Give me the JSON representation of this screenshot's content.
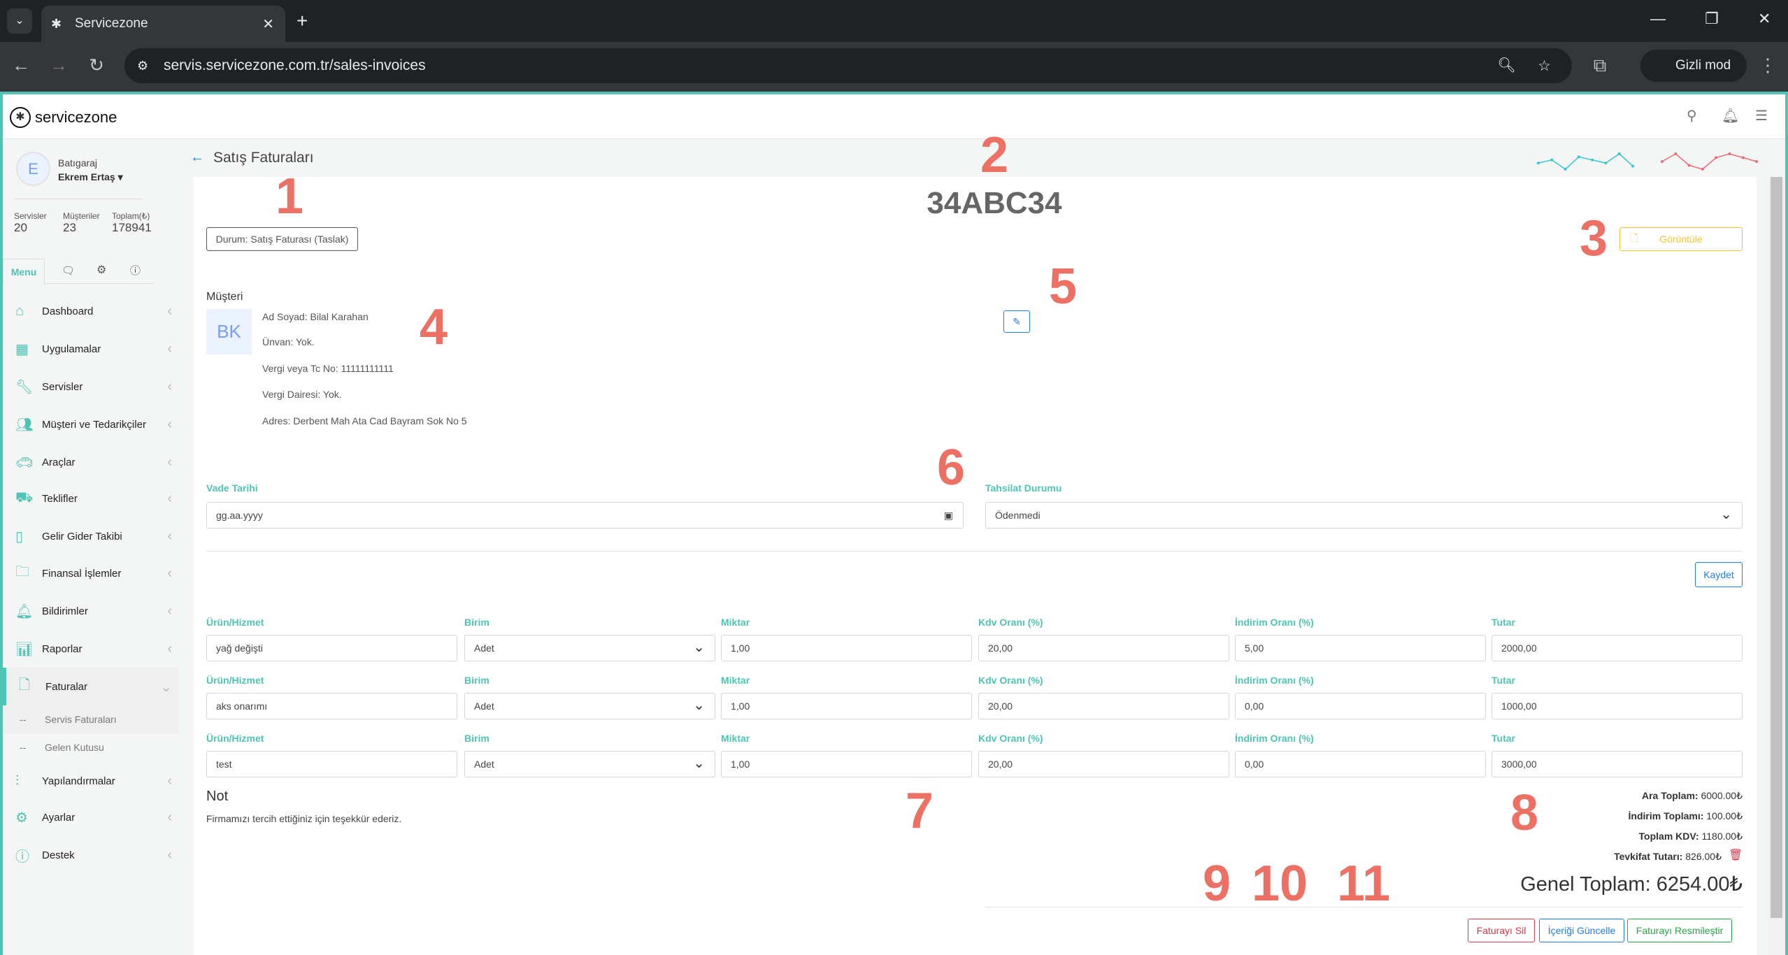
{
  "browser": {
    "tab_title": "Servicezone",
    "url": "servis.servicezone.com.tr/sales-invoices",
    "incognito_label": "Gizli mod"
  },
  "app": {
    "logo": "servicezone"
  },
  "user": {
    "company": "Batıgaraj",
    "name": "Ekrem Ertaş",
    "avatar": "E",
    "stats": [
      {
        "label": "Servisler",
        "value": "20"
      },
      {
        "label": "Müşteriler",
        "value": "23"
      },
      {
        "label": "Toplam(₺)",
        "value": "178941"
      }
    ]
  },
  "sidebar": {
    "tabs": {
      "menu": "Menu"
    },
    "items": [
      {
        "label": "Dashboard",
        "icon": "home"
      },
      {
        "label": "Uygulamalar",
        "icon": "grid"
      },
      {
        "label": "Servisler",
        "icon": "wrench"
      },
      {
        "label": "Müşteri ve Tedarikçiler",
        "icon": "users"
      },
      {
        "label": "Araçlar",
        "icon": "car"
      },
      {
        "label": "Teklifler",
        "icon": "offer"
      },
      {
        "label": "Gelir Gider Takibi",
        "icon": "book"
      },
      {
        "label": "Finansal İşlemler",
        "icon": "folder"
      },
      {
        "label": "Bildirimler",
        "icon": "bell"
      },
      {
        "label": "Raporlar",
        "icon": "chart"
      },
      {
        "label": "Faturalar",
        "icon": "file"
      }
    ],
    "sub": [
      {
        "prefix": "--",
        "label": "Servis Faturaları"
      },
      {
        "prefix": "--",
        "label": "Gelen Kutusu"
      }
    ],
    "bottom": [
      {
        "label": "Yapılandırmalar",
        "icon": "sliders"
      },
      {
        "label": "Ayarlar",
        "icon": "gear"
      },
      {
        "label": "Destek",
        "icon": "info"
      }
    ]
  },
  "page": {
    "title": "Satış Faturaları",
    "plate": "34ABC34",
    "status": "Durum: Satış Faturası (Taslak)",
    "view_button": "Görüntüle",
    "sparklines": {
      "cyan": [
        3,
        4,
        1,
        5,
        4,
        3,
        6,
        2
      ],
      "red": [
        4,
        6,
        3,
        2,
        5,
        6,
        5,
        4
      ],
      "colors": {
        "cyan": "#36c6d3",
        "red": "#ed6b75"
      }
    }
  },
  "customer": {
    "heading": "Müşteri",
    "initials": "BK",
    "lines": [
      "Ad Soyad: Bilal Karahan",
      "Ünvan: Yok.",
      "Vergi veya Tc No: 11111111111",
      "Vergi Dairesi: Yok.",
      "Adres: Derbent Mah Ata Cad Bayram Sok No 5"
    ]
  },
  "form": {
    "due_label": "Vade Tarihi",
    "due_placeholder": "gg.aa.yyyy",
    "payment_label": "Tahsilat Durumu",
    "payment_value": "Ödenmedi",
    "save": "Kaydet"
  },
  "items_headers": [
    "Ürün/Hizmet",
    "Birim",
    "Miktar",
    "Kdv Oranı (%)",
    "İndirim Oranı (%)",
    "Tutar"
  ],
  "items": [
    [
      "yağ değişti",
      "Adet",
      "1,00",
      "20,00",
      "5,00",
      "2000,00"
    ],
    [
      "aks onarımı",
      "Adet",
      "1,00",
      "20,00",
      "0,00",
      "1000,00"
    ],
    [
      "test",
      "Adet",
      "1,00",
      "20,00",
      "0,00",
      "3000,00"
    ]
  ],
  "note": {
    "heading": "Not",
    "text": "Firmamızı tercih ettiğiniz için teşekkür ederiz."
  },
  "totals": {
    "subtotal_label": "Ara Toplam:",
    "subtotal": "6000.00₺",
    "discount_label": "İndirim Toplamı:",
    "discount": "100.00₺",
    "vat_label": "Toplam KDV:",
    "vat": "1180.00₺",
    "withholding_label": "Tevkifat Tutarı:",
    "withholding": "826.00₺",
    "grand_label": "Genel Toplam:",
    "grand": "6254.00₺"
  },
  "actions": {
    "delete": "Faturayı Sil",
    "update": "İçeriği Güncelle",
    "formalize": "Faturayı Resmileştir"
  },
  "annotations": [
    "1",
    "2",
    "3",
    "4",
    "5",
    "6",
    "7",
    "8",
    "9",
    "10",
    "11"
  ]
}
